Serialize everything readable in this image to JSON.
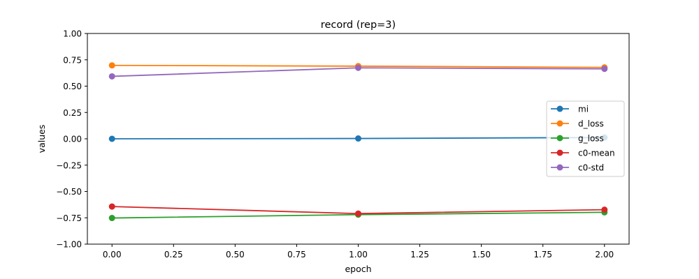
{
  "chart_data": {
    "type": "line",
    "title": "record (rep=3)",
    "xlabel": "epoch",
    "ylabel": "values",
    "x": [
      0.0,
      1.0,
      2.0
    ],
    "xlim": [
      -0.1,
      2.1
    ],
    "ylim": [
      -1.0,
      1.0
    ],
    "xticks": [
      0.0,
      0.25,
      0.5,
      0.75,
      1.0,
      1.25,
      1.5,
      1.75,
      2.0
    ],
    "xtick_labels": [
      "0.00",
      "0.25",
      "0.50",
      "0.75",
      "1.00",
      "1.25",
      "1.50",
      "1.75",
      "2.00"
    ],
    "yticks": [
      -1.0,
      -0.75,
      -0.5,
      -0.25,
      0.0,
      0.25,
      0.5,
      0.75,
      1.0
    ],
    "ytick_labels": [
      "−1.00",
      "−0.75",
      "−0.50",
      "−0.25",
      "0.00",
      "0.25",
      "0.50",
      "0.75",
      "1.00"
    ],
    "grid": false,
    "legend_position": "center-right",
    "series": [
      {
        "name": "mi",
        "color": "#1f77b4",
        "values": [
          0.0,
          0.003,
          0.012
        ]
      },
      {
        "name": "d_loss",
        "color": "#ff7f0e",
        "values": [
          0.697,
          0.69,
          0.678
        ]
      },
      {
        "name": "g_loss",
        "color": "#2ca02c",
        "values": [
          -0.752,
          -0.72,
          -0.698
        ]
      },
      {
        "name": "c0-mean",
        "color": "#d62728",
        "values": [
          -0.643,
          -0.71,
          -0.673
        ]
      },
      {
        "name": "c0-std",
        "color": "#9467bd",
        "values": [
          0.593,
          0.674,
          0.664
        ]
      }
    ]
  }
}
